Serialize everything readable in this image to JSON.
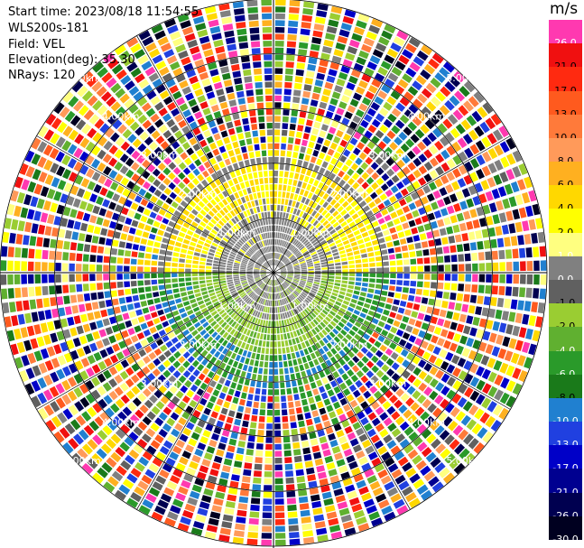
{
  "header": {
    "start_time": "Start time: 2023/08/18 11:54:55",
    "site": "WLS200s-181",
    "field": "Field: VEL",
    "elevation": "Elevation(deg): 35.30",
    "nrays": "NRays: 120"
  },
  "colorbar": {
    "unit": "m/s",
    "labels": [
      "26.0",
      "21.0",
      "17.0",
      "13.0",
      "10.0",
      "8.0",
      "6.0",
      "4.0",
      "2.0",
      "1.0",
      "0.0",
      "-1.0",
      "-2.0",
      "-4.0",
      "-6.0",
      "-8.0",
      "-10.0",
      "-13.0",
      "-17.0",
      "-21.0",
      "-26.0",
      "-30.0"
    ],
    "colors": [
      "#ff39b0",
      "#f01010",
      "#ff2a10",
      "#ff5a1e",
      "#ff7a3a",
      "#ff9a5a",
      "#ffb020",
      "#ffd800",
      "#ffff00",
      "#ffff80",
      "#808080",
      "#606060",
      "#9acd32",
      "#60b030",
      "#2a9a2a",
      "#1a7a1a",
      "#2080d0",
      "#2040e0",
      "#0000c8",
      "#000090",
      "#000050",
      "#000020"
    ]
  },
  "chart_data": {
    "type": "heatmap",
    "title": "",
    "field": "VEL",
    "units": "m/s",
    "rays": 120,
    "range_ring_labels": [
      "1.00km",
      "2.00km",
      "3.00km",
      "4.00km",
      "5.00km"
    ],
    "range_rings_km": [
      1,
      2,
      3,
      4,
      5
    ],
    "max_range_km": 5,
    "color_levels": [
      26,
      21,
      17,
      13,
      10,
      8,
      6,
      4,
      2,
      1,
      0,
      -1,
      -2,
      -4,
      -6,
      -8,
      -10,
      -13,
      -17,
      -21,
      -26,
      -30
    ],
    "pattern": {
      "near_north_half": "gray (approx 0 m/s)",
      "mid_north_arc": "yellow (approx 2 to 4 m/s)",
      "near_south_half": "green (approx -1 to -6 m/s)",
      "outer_ring": "noisy, all levels"
    }
  }
}
